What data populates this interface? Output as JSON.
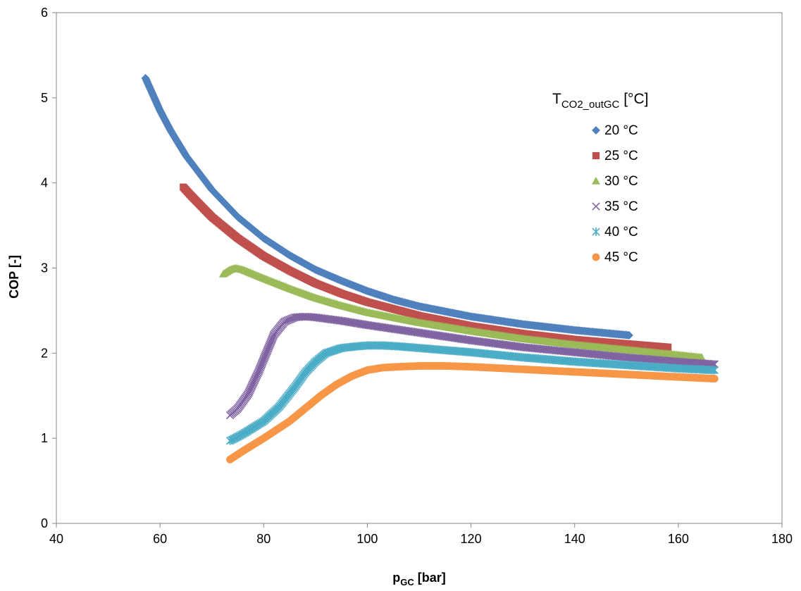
{
  "chart_data": {
    "type": "scatter",
    "title": "",
    "xlabel": "p",
    "xlabel_sub": "GC",
    "xlabel_unit": " [bar]",
    "ylabel": "COP [-]",
    "xlim": [
      40,
      180
    ],
    "ylim": [
      0,
      6
    ],
    "xticks": [
      40,
      60,
      80,
      100,
      120,
      140,
      160,
      180
    ],
    "yticks": [
      0,
      1,
      2,
      3,
      4,
      5,
      6
    ],
    "grid": false,
    "legend_placement": "top-right",
    "legend_title": {
      "main": "T",
      "sub": "CO2_outGC",
      "unit": " [°C]"
    },
    "series": [
      {
        "name": "20 °C",
        "marker": "diamond",
        "color": "#4F81BD",
        "x": [
          57.2,
          60,
          62,
          65,
          70,
          75,
          80,
          85,
          90,
          95,
          100,
          105,
          110,
          120,
          130,
          140,
          150.5
        ],
        "y": [
          5.23,
          4.85,
          4.62,
          4.32,
          3.92,
          3.6,
          3.35,
          3.15,
          2.98,
          2.85,
          2.73,
          2.63,
          2.55,
          2.43,
          2.34,
          2.27,
          2.21
        ]
      },
      {
        "name": "25 °C",
        "marker": "square",
        "color": "#C0504D",
        "x": [
          64.5,
          66,
          70,
          75,
          80,
          85,
          90,
          95,
          100,
          110,
          120,
          130,
          140,
          150,
          158
        ],
        "y": [
          3.95,
          3.85,
          3.6,
          3.35,
          3.14,
          2.97,
          2.82,
          2.7,
          2.6,
          2.44,
          2.32,
          2.23,
          2.16,
          2.11,
          2.07
        ]
      },
      {
        "name": "30 °C",
        "marker": "triangle",
        "color": "#9BBB59",
        "x": [
          72.2,
          73.5,
          74.5,
          76,
          80,
          85,
          90,
          95,
          100,
          110,
          120,
          130,
          140,
          150,
          160,
          164.5
        ],
        "y": [
          2.93,
          2.98,
          3.0,
          2.98,
          2.88,
          2.76,
          2.65,
          2.56,
          2.48,
          2.36,
          2.26,
          2.17,
          2.1,
          2.04,
          1.98,
          1.95
        ]
      },
      {
        "name": "35 °C",
        "marker": "x",
        "color": "#8064A2",
        "x": [
          73.5,
          75,
          77,
          79,
          80.5,
          82,
          84,
          86,
          88,
          90,
          95,
          100,
          110,
          120,
          130,
          140,
          150,
          160,
          167
        ],
        "y": [
          1.27,
          1.35,
          1.52,
          1.78,
          2.0,
          2.22,
          2.37,
          2.42,
          2.43,
          2.42,
          2.38,
          2.33,
          2.24,
          2.15,
          2.07,
          2.01,
          1.95,
          1.9,
          1.87
        ]
      },
      {
        "name": "40 °C",
        "marker": "asterisk",
        "color": "#4BACC6",
        "x": [
          73.5,
          76,
          80,
          83,
          86,
          88,
          90,
          92,
          95,
          98,
          100,
          103,
          106,
          110,
          120,
          130,
          140,
          150,
          160,
          167
        ],
        "y": [
          0.97,
          1.05,
          1.2,
          1.37,
          1.6,
          1.77,
          1.9,
          2.0,
          2.06,
          2.08,
          2.09,
          2.09,
          2.08,
          2.06,
          2.01,
          1.95,
          1.9,
          1.86,
          1.82,
          1.8
        ]
      },
      {
        "name": "45 °C",
        "marker": "circle",
        "color": "#F79646",
        "x": [
          73.5,
          76,
          80,
          85,
          88,
          91,
          94,
          97,
          100,
          103,
          106,
          110,
          115,
          120,
          130,
          140,
          150,
          160,
          167
        ],
        "y": [
          0.75,
          0.85,
          1.0,
          1.2,
          1.35,
          1.5,
          1.63,
          1.73,
          1.8,
          1.83,
          1.84,
          1.85,
          1.85,
          1.84,
          1.81,
          1.78,
          1.75,
          1.72,
          1.7
        ]
      }
    ]
  }
}
